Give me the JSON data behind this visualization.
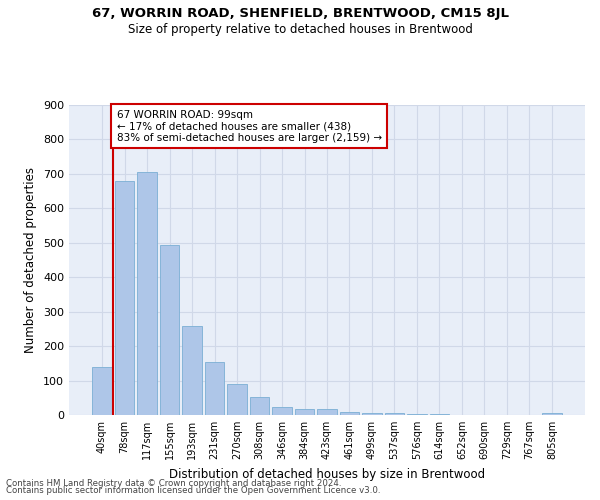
{
  "title1": "67, WORRIN ROAD, SHENFIELD, BRENTWOOD, CM15 8JL",
  "title2": "Size of property relative to detached houses in Brentwood",
  "xlabel": "Distribution of detached houses by size in Brentwood",
  "ylabel": "Number of detached properties",
  "footer1": "Contains HM Land Registry data © Crown copyright and database right 2024.",
  "footer2": "Contains public sector information licensed under the Open Government Licence v3.0.",
  "bar_labels": [
    "40sqm",
    "78sqm",
    "117sqm",
    "155sqm",
    "193sqm",
    "231sqm",
    "270sqm",
    "308sqm",
    "346sqm",
    "384sqm",
    "423sqm",
    "461sqm",
    "499sqm",
    "537sqm",
    "576sqm",
    "614sqm",
    "652sqm",
    "690sqm",
    "729sqm",
    "767sqm",
    "805sqm"
  ],
  "bar_values": [
    138,
    678,
    706,
    493,
    257,
    153,
    90,
    52,
    23,
    18,
    18,
    10,
    7,
    5,
    4,
    2,
    1,
    1,
    1,
    1,
    5
  ],
  "bar_color": "#aec6e8",
  "bar_edge_color": "#7bafd4",
  "grid_color": "#d0d8e8",
  "background_color": "#e8eef8",
  "vline_x": 0.5,
  "vline_color": "#cc0000",
  "annotation_line1": "67 WORRIN ROAD: 99sqm",
  "annotation_line2": "← 17% of detached houses are smaller (438)",
  "annotation_line3": "83% of semi-detached houses are larger (2,159) →",
  "annotation_box_color": "#ffffff",
  "annotation_box_edge": "#cc0000",
  "ylim_max": 900,
  "yticks": [
    0,
    100,
    200,
    300,
    400,
    500,
    600,
    700,
    800,
    900
  ]
}
